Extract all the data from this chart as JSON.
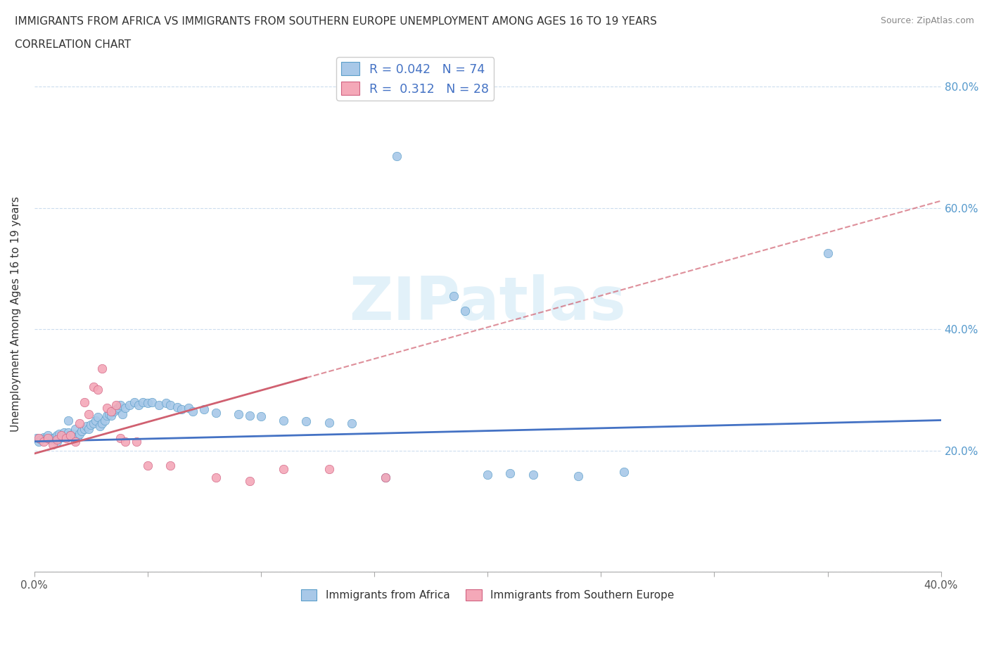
{
  "title_line1": "IMMIGRANTS FROM AFRICA VS IMMIGRANTS FROM SOUTHERN EUROPE UNEMPLOYMENT AMONG AGES 16 TO 19 YEARS",
  "title_line2": "CORRELATION CHART",
  "source": "Source: ZipAtlas.com",
  "ylabel": "Unemployment Among Ages 16 to 19 years",
  "xlim": [
    0.0,
    0.4
  ],
  "ylim": [
    0.0,
    0.85
  ],
  "color_africa": "#a8c8e8",
  "color_africa_edge": "#5b9ec9",
  "color_southern": "#f4a8b8",
  "color_southern_edge": "#d06080",
  "color_line_africa": "#4472c4",
  "color_line_southern": "#d06070",
  "watermark_text": "ZIPatlas",
  "watermark_color": "#d0e8f5",
  "africa_x": [
    0.001,
    0.002,
    0.003,
    0.004,
    0.005,
    0.006,
    0.007,
    0.008,
    0.009,
    0.01,
    0.01,
    0.011,
    0.012,
    0.013,
    0.014,
    0.015,
    0.015,
    0.016,
    0.017,
    0.018,
    0.019,
    0.02,
    0.021,
    0.022,
    0.023,
    0.024,
    0.025,
    0.026,
    0.027,
    0.028,
    0.029,
    0.03,
    0.031,
    0.032,
    0.033,
    0.034,
    0.035,
    0.036,
    0.037,
    0.038,
    0.039,
    0.04,
    0.042,
    0.044,
    0.046,
    0.048,
    0.05,
    0.052,
    0.055,
    0.058,
    0.06,
    0.063,
    0.065,
    0.068,
    0.07,
    0.075,
    0.08,
    0.09,
    0.095,
    0.1,
    0.11,
    0.12,
    0.13,
    0.14,
    0.155,
    0.16,
    0.185,
    0.19,
    0.2,
    0.21,
    0.22,
    0.24,
    0.26,
    0.35
  ],
  "africa_y": [
    0.22,
    0.215,
    0.218,
    0.222,
    0.22,
    0.225,
    0.218,
    0.22,
    0.222,
    0.225,
    0.215,
    0.228,
    0.222,
    0.23,
    0.225,
    0.23,
    0.25,
    0.225,
    0.228,
    0.235,
    0.222,
    0.228,
    0.232,
    0.235,
    0.24,
    0.235,
    0.242,
    0.245,
    0.25,
    0.255,
    0.24,
    0.245,
    0.25,
    0.258,
    0.26,
    0.258,
    0.265,
    0.268,
    0.27,
    0.275,
    0.26,
    0.27,
    0.275,
    0.28,
    0.275,
    0.28,
    0.278,
    0.28,
    0.275,
    0.278,
    0.275,
    0.272,
    0.268,
    0.27,
    0.265,
    0.268,
    0.262,
    0.26,
    0.258,
    0.256,
    0.25,
    0.248,
    0.246,
    0.245,
    0.155,
    0.685,
    0.455,
    0.43,
    0.16,
    0.162,
    0.16,
    0.158,
    0.165,
    0.525
  ],
  "southern_x": [
    0.002,
    0.004,
    0.006,
    0.008,
    0.01,
    0.012,
    0.014,
    0.016,
    0.018,
    0.02,
    0.022,
    0.024,
    0.026,
    0.028,
    0.03,
    0.032,
    0.034,
    0.036,
    0.038,
    0.04,
    0.045,
    0.05,
    0.06,
    0.08,
    0.095,
    0.11,
    0.13,
    0.155
  ],
  "southern_y": [
    0.22,
    0.215,
    0.22,
    0.21,
    0.218,
    0.225,
    0.22,
    0.225,
    0.215,
    0.245,
    0.28,
    0.26,
    0.305,
    0.3,
    0.335,
    0.27,
    0.265,
    0.275,
    0.22,
    0.215,
    0.215,
    0.175,
    0.175,
    0.155,
    0.15,
    0.17,
    0.17,
    0.155
  ]
}
